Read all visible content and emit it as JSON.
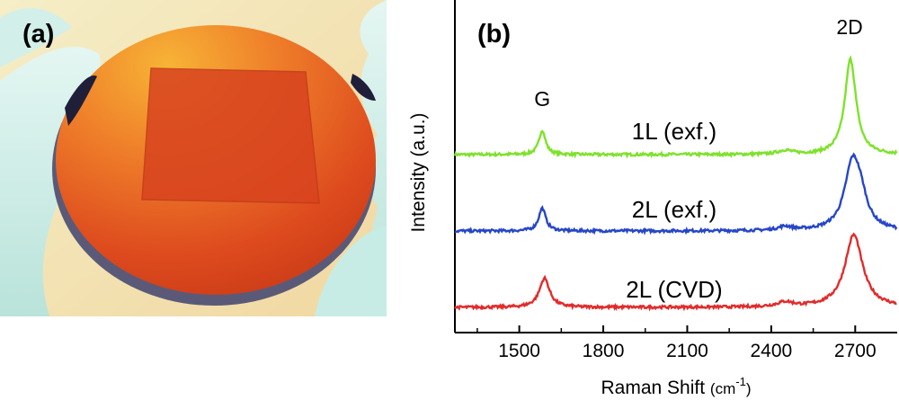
{
  "panels": {
    "a_label": "(a)",
    "b_label": "(b)"
  },
  "photo": {
    "description_colors": {
      "wafer": "#dd4a1e",
      "wafer_highlight": "#f7b436",
      "glove": "#c6ece5",
      "background": "#f3e7bb"
    }
  },
  "chart_data": {
    "type": "line",
    "xlabel": "Raman Shift",
    "xunit_base": "(cm",
    "xunit_sup": "-1",
    "xunit_close": ")",
    "ylabel": "Intensity (a.u.)",
    "xlim": [
      1270,
      2850
    ],
    "xticks": [
      1500,
      1800,
      2100,
      2400,
      2700
    ],
    "yticks_shown": false,
    "annotations": [
      {
        "text": "G",
        "x": 1582
      },
      {
        "text": "2D",
        "x": 2680
      }
    ],
    "series": [
      {
        "name": "1L (exf.)",
        "color": "#7ee22b",
        "offset": 2.0,
        "peaks": [
          {
            "center": 1582,
            "width": 14,
            "height": 0.32
          },
          {
            "center": 2450,
            "width": 30,
            "height": 0.05
          },
          {
            "center": 2683,
            "width": 24,
            "height": 1.25
          }
        ]
      },
      {
        "name": "2L (exf.)",
        "color": "#2646c8",
        "offset": 1.0,
        "peaks": [
          {
            "center": 1582,
            "width": 15,
            "height": 0.3
          },
          {
            "center": 2450,
            "width": 30,
            "height": 0.05
          },
          {
            "center": 2690,
            "width": 34,
            "height": 0.85
          },
          {
            "center": 2720,
            "width": 28,
            "height": 0.28
          }
        ]
      },
      {
        "name": "2L (CVD)",
        "color": "#e22b2b",
        "offset": 0.0,
        "peaks": [
          {
            "center": 1590,
            "width": 22,
            "height": 0.38
          },
          {
            "center": 2450,
            "width": 35,
            "height": 0.06
          },
          {
            "center": 2695,
            "width": 38,
            "height": 0.95
          }
        ]
      }
    ]
  }
}
